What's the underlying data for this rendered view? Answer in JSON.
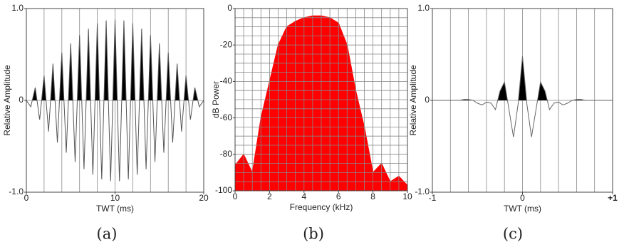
{
  "chart_data": [
    {
      "type": "line",
      "caption": "(a)",
      "xlabel": "TWT (ms)",
      "ylabel": "Relative Amplitude",
      "x": [
        0,
        0.5,
        1,
        1.5,
        2,
        2.5,
        3,
        3.5,
        4,
        4.5,
        5,
        5.5,
        6,
        6.5,
        7,
        7.5,
        8,
        8.5,
        9,
        9.5,
        10,
        10.5,
        11,
        11.5,
        12,
        12.5,
        13,
        13.5,
        14,
        14.5,
        15,
        15.5,
        16,
        16.5,
        17,
        17.5,
        18,
        18.5,
        19,
        19.5,
        20
      ],
      "values": [
        0,
        -0.07,
        0.14,
        -0.21,
        0.27,
        -0.34,
        0.4,
        -0.46,
        0.52,
        -0.57,
        0.62,
        -0.67,
        0.71,
        -0.75,
        0.78,
        -0.81,
        0.84,
        -0.86,
        0.87,
        -0.88,
        0.88,
        -0.88,
        0.87,
        -0.86,
        0.84,
        -0.81,
        0.78,
        -0.75,
        0.71,
        -0.67,
        0.62,
        -0.57,
        0.52,
        -0.46,
        0.4,
        -0.34,
        0.27,
        -0.21,
        0.14,
        -0.07,
        0
      ],
      "color": "#555555",
      "fill_positive": "#000000",
      "xlim": [
        0,
        20
      ],
      "ylim": [
        -1,
        1
      ],
      "xticks": [
        0,
        10,
        20
      ],
      "yticks": [
        {
          "value": -1,
          "label": "-1.0"
        },
        0,
        {
          "value": 1,
          "label": "1.0"
        }
      ],
      "xgrid": [
        2,
        4,
        6,
        8,
        10,
        12,
        14,
        16,
        18
      ],
      "ygrid": [
        0
      ]
    },
    {
      "type": "area",
      "caption": "(b)",
      "xlabel": "Frequency (kHz)",
      "ylabel": "dB Power",
      "x": [
        0,
        0.5,
        1,
        1.5,
        2,
        2.5,
        3,
        3.5,
        4,
        4.5,
        5,
        5.5,
        6,
        6.5,
        7,
        7.5,
        8,
        8.5,
        9,
        9.5,
        10
      ],
      "values": [
        -86,
        -80,
        -90,
        -60,
        -40,
        -20,
        -10,
        -7,
        -5,
        -4,
        -4,
        -5,
        -8,
        -20,
        -45,
        -65,
        -90,
        -85,
        -95,
        -92,
        -97
      ],
      "color": "#ff0000",
      "xlim": [
        0,
        10
      ],
      "ylim": [
        -100,
        0
      ],
      "xticks": [
        0,
        2,
        4,
        6,
        8,
        10
      ],
      "yticks": [
        -100,
        -80,
        -60,
        -40,
        -20,
        0
      ],
      "xgrid": [
        0.5,
        1,
        1.5,
        2,
        2.5,
        3,
        3.5,
        4,
        4.5,
        5,
        5.5,
        6,
        6.5,
        7,
        7.5,
        8,
        8.5,
        9,
        9.5
      ],
      "ygrid": [
        -95,
        -90,
        -85,
        -80,
        -75,
        -70,
        -65,
        -60,
        -55,
        -50,
        -45,
        -40,
        -35,
        -30,
        -25,
        -20,
        -15,
        -10,
        -5
      ]
    },
    {
      "type": "line",
      "caption": "(c)",
      "xlabel": "TWT (ms)",
      "ylabel": "Relative Amplitude",
      "x": [
        -1,
        -0.95,
        -0.9,
        -0.85,
        -0.8,
        -0.75,
        -0.7,
        -0.65,
        -0.6,
        -0.55,
        -0.5,
        -0.45,
        -0.4,
        -0.35,
        -0.3,
        -0.25,
        -0.2,
        -0.15,
        -0.1,
        -0.05,
        0,
        0.05,
        0.1,
        0.15,
        0.2,
        0.25,
        0.3,
        0.35,
        0.4,
        0.45,
        0.5,
        0.55,
        0.6,
        0.65,
        0.7,
        0.75,
        0.8,
        0.85,
        0.9,
        0.95,
        1
      ],
      "values": [
        0,
        0,
        0,
        0,
        0,
        0,
        0,
        0.01,
        0.01,
        0,
        -0.03,
        -0.05,
        -0.02,
        -0.03,
        -0.1,
        0.1,
        0.2,
        -0.1,
        -0.4,
        -0.05,
        0.48,
        -0.05,
        -0.4,
        -0.1,
        0.2,
        0.1,
        -0.1,
        -0.03,
        -0.02,
        -0.05,
        -0.03,
        0,
        0.01,
        0.01,
        0,
        0,
        0,
        0,
        0,
        0,
        0
      ],
      "color": "#666666",
      "fill_positive": "#000000",
      "xlim": [
        -1,
        1
      ],
      "ylim": [
        -1,
        1
      ],
      "xticks": [
        -1,
        0,
        {
          "value": 1,
          "label": "+1"
        }
      ],
      "yticks": [
        {
          "value": -1,
          "label": "-1.0"
        },
        0,
        {
          "value": 1,
          "label": "1.0"
        }
      ],
      "xgrid": [
        -0.8,
        -0.6,
        -0.4,
        -0.2,
        0,
        0.2,
        0.4,
        0.6,
        0.8
      ],
      "ygrid": [
        0
      ]
    }
  ]
}
